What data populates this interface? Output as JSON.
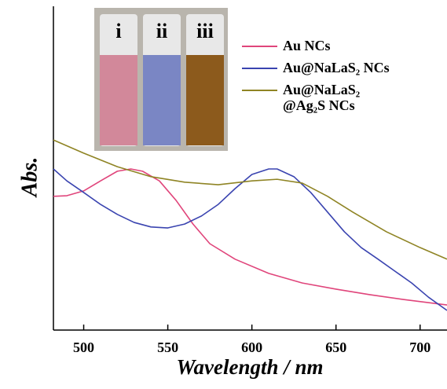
{
  "chart_data": {
    "type": "line",
    "x_label": "Wavelength / nm",
    "y_label": "Abs.",
    "xlim": [
      482,
      716
    ],
    "xticks": [
      500,
      550,
      600,
      650,
      700
    ],
    "ylim": [
      0,
      100
    ],
    "inset": {
      "labels": [
        "i",
        "ii",
        "iii"
      ]
    },
    "series": [
      {
        "name": "Au NCs",
        "color": "#e0457b",
        "x": [
          482,
          490,
          500,
          510,
          520,
          528,
          535,
          545,
          555,
          565,
          575,
          590,
          610,
          630,
          650,
          670,
          690,
          716
        ],
        "values": [
          41.5,
          41.7,
          43.2,
          46.3,
          49.3,
          50,
          49.3,
          46.3,
          40.2,
          32.9,
          26.8,
          22,
          17.6,
          14.6,
          12.7,
          11,
          9.5,
          7.8
        ]
      },
      {
        "name": "Au@NaLaS₂ NCs",
        "color": "#3a44b0",
        "x": [
          482,
          490,
          500,
          510,
          520,
          530,
          540,
          550,
          560,
          570,
          580,
          590,
          600,
          610,
          615,
          625,
          635,
          645,
          655,
          665,
          675,
          685,
          695,
          705,
          716
        ],
        "values": [
          50,
          46.3,
          42.7,
          39,
          35.9,
          33.4,
          32,
          31.7,
          32.9,
          35.4,
          39,
          43.9,
          48.3,
          50,
          50,
          47.6,
          42.7,
          36.6,
          30.5,
          25.6,
          22,
          18.3,
          14.6,
          10.2,
          6.1
        ]
      },
      {
        "name": "Au@NaLaS₂ @Ag₂S NCs",
        "color": "#8f8424",
        "x": [
          482,
          500,
          520,
          540,
          560,
          580,
          600,
          615,
          630,
          645,
          660,
          680,
          700,
          716
        ],
        "values": [
          59,
          54.9,
          50.7,
          47.6,
          45.9,
          45.1,
          46.3,
          46.8,
          45.6,
          41.5,
          36.6,
          30.5,
          25.6,
          22
        ]
      }
    ]
  }
}
